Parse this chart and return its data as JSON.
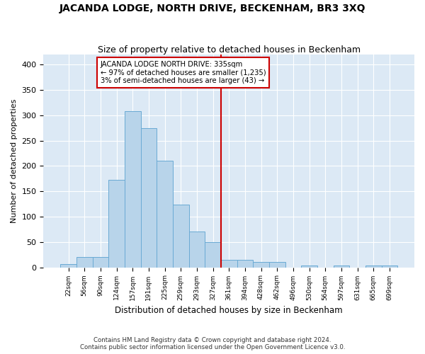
{
  "title": "JACANDA LODGE, NORTH DRIVE, BECKENHAM, BR3 3XQ",
  "subtitle": "Size of property relative to detached houses in Beckenham",
  "xlabel": "Distribution of detached houses by size in Beckenham",
  "ylabel": "Number of detached properties",
  "bin_labels": [
    "22sqm",
    "56sqm",
    "90sqm",
    "124sqm",
    "157sqm",
    "191sqm",
    "225sqm",
    "259sqm",
    "293sqm",
    "327sqm",
    "361sqm",
    "394sqm",
    "428sqm",
    "462sqm",
    "496sqm",
    "530sqm",
    "564sqm",
    "597sqm",
    "631sqm",
    "665sqm",
    "699sqm"
  ],
  "bar_values": [
    7,
    21,
    20,
    173,
    308,
    274,
    210,
    124,
    70,
    50,
    15,
    15,
    10,
    10,
    0,
    4,
    0,
    4,
    0,
    4,
    4
  ],
  "bar_color": "#b8d4ea",
  "bar_edge_color": "#6aaad4",
  "background_color": "#dce9f5",
  "vline_color": "#cc0000",
  "annotation_title": "JACANDA LODGE NORTH DRIVE: 335sqm",
  "annotation_line1": "← 97% of detached houses are smaller (1,235)",
  "annotation_line2": "3% of semi-detached houses are larger (43) →",
  "annotation_box_color": "#cc0000",
  "footer_line1": "Contains HM Land Registry data © Crown copyright and database right 2024.",
  "footer_line2": "Contains public sector information licensed under the Open Government Licence v3.0.",
  "ylim": [
    0,
    420
  ],
  "yticks": [
    0,
    50,
    100,
    150,
    200,
    250,
    300,
    350,
    400
  ]
}
